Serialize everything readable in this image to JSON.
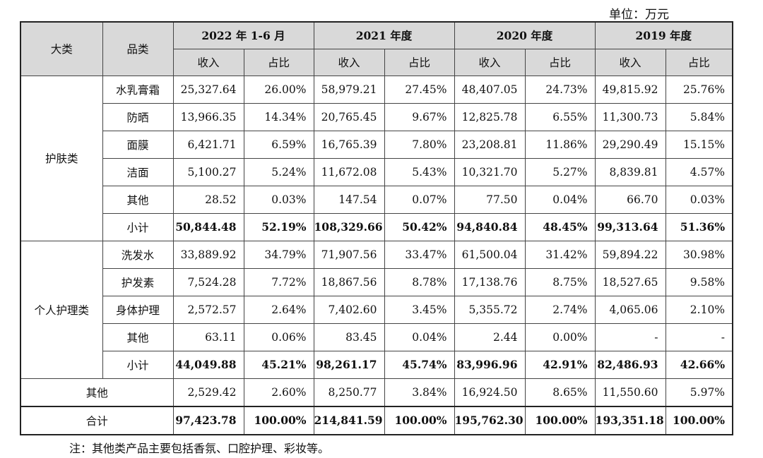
{
  "unit_label": "单位：万元",
  "headers": {
    "major": "大类",
    "category": "品类",
    "periods": [
      "2022 年 1-6 月",
      "2021 年度",
      "2020 年度",
      "2019 年度"
    ],
    "revenue": "收入",
    "share": "占比"
  },
  "groups": [
    {
      "name": "护肤类",
      "rows": [
        {
          "category": "水乳膏霜",
          "values": [
            "25,327.64",
            "26.00%",
            "58,979.21",
            "27.45%",
            "48,407.05",
            "24.73%",
            "49,815.92",
            "25.76%"
          ]
        },
        {
          "category": "防晒",
          "values": [
            "13,966.35",
            "14.34%",
            "20,765.45",
            "9.67%",
            "12,825.78",
            "6.55%",
            "11,300.73",
            "5.84%"
          ]
        },
        {
          "category": "面膜",
          "values": [
            "6,421.71",
            "6.59%",
            "16,765.39",
            "7.80%",
            "23,208.81",
            "11.86%",
            "29,290.49",
            "15.15%"
          ]
        },
        {
          "category": "洁面",
          "values": [
            "5,100.27",
            "5.24%",
            "11,672.08",
            "5.43%",
            "10,321.70",
            "5.27%",
            "8,839.81",
            "4.57%"
          ]
        },
        {
          "category": "其他",
          "values": [
            "28.52",
            "0.03%",
            "147.54",
            "0.07%",
            "77.50",
            "0.04%",
            "66.70",
            "0.03%"
          ]
        },
        {
          "category": "小计",
          "values": [
            "50,844.48",
            "52.19%",
            "108,329.66",
            "50.42%",
            "94,840.84",
            "48.45%",
            "99,313.64",
            "51.36%"
          ]
        }
      ]
    },
    {
      "name": "个人护理类",
      "rows": [
        {
          "category": "洗发水",
          "values": [
            "33,889.92",
            "34.79%",
            "71,907.56",
            "33.47%",
            "61,500.04",
            "31.42%",
            "59,894.22",
            "30.98%"
          ]
        },
        {
          "category": "护发素",
          "values": [
            "7,524.28",
            "7.72%",
            "18,867.56",
            "8.78%",
            "17,138.76",
            "8.75%",
            "18,527.65",
            "9.58%"
          ]
        },
        {
          "category": "身体护理",
          "values": [
            "2,572.57",
            "2.64%",
            "7,402.60",
            "3.45%",
            "5,355.72",
            "2.74%",
            "4,065.06",
            "2.10%"
          ]
        },
        {
          "category": "其他",
          "values": [
            "63.11",
            "0.06%",
            "83.45",
            "0.04%",
            "2.44",
            "0.00%",
            "-",
            "-"
          ]
        },
        {
          "category": "小计",
          "values": [
            "44,049.88",
            "45.21%",
            "98,261.17",
            "45.74%",
            "83,996.96",
            "42.91%",
            "82,486.93",
            "42.66%"
          ]
        }
      ]
    }
  ],
  "other_row": {
    "label": "其他",
    "values": [
      "2,529.42",
      "2.60%",
      "8,250.77",
      "3.84%",
      "16,924.50",
      "8.65%",
      "11,550.60",
      "5.97%"
    ]
  },
  "total_row": {
    "label": "合计",
    "values": [
      "97,423.78",
      "100.00%",
      "214,841.59",
      "100.00%",
      "195,762.30",
      "100.00%",
      "193,351.18",
      "100.00%"
    ]
  },
  "note": "注：其他类产品主要包括香氛、口腔护理、彩妆等。"
}
